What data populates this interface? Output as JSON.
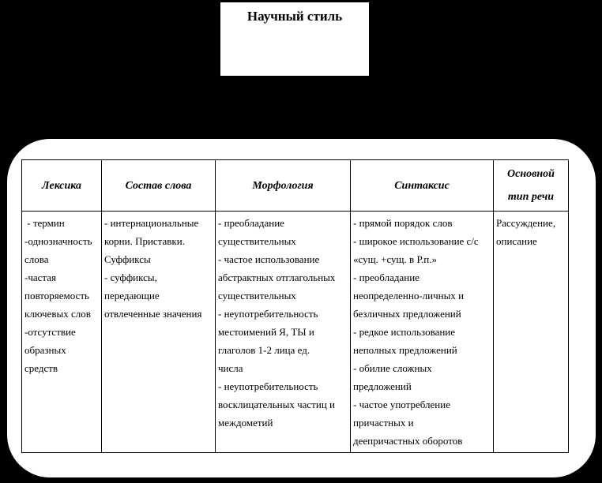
{
  "title_box": {
    "label": "Научный стиль"
  },
  "table": {
    "headers": [
      {
        "lines": [
          "Лексика"
        ]
      },
      {
        "lines": [
          "Состав слова"
        ]
      },
      {
        "lines": [
          "Морфология"
        ]
      },
      {
        "lines": [
          "Синтаксис"
        ]
      },
      {
        "lines": [
          "Основной",
          "тип речи"
        ]
      }
    ],
    "cells": [
      {
        "lines": [
          " - термин",
          "-однозначность",
          "слова",
          "-частая",
          "повторяемость",
          "ключевых слов",
          "-отсутствие",
          "образных",
          "средств"
        ]
      },
      {
        "lines": [
          "- интернациональные",
          "корни. Приставки.",
          "Суффиксы",
          "- суффиксы,",
          "передающие",
          "отвлеченные значения"
        ]
      },
      {
        "lines": [
          "- преобладание",
          "существительных",
          "- частое использование",
          "абстрактных отглагольных",
          "существительных",
          "- неупотребительность",
          "местоимений Я, ТЫ и",
          "глаголов 1-2 лица ед.",
          "числа",
          "- неупотребительность",
          "восклицательных частиц и",
          "междометий"
        ]
      },
      {
        "lines": [
          "- прямой порядок слов",
          "- широкое использование с/с",
          "«сущ. +сущ. в Р.п.»",
          "- преобладание",
          "неопределенно-личных и",
          "безличных предложений",
          "- редкое использование",
          "неполных предложений",
          "- обилие сложных",
          "предложений",
          "- частое употребление",
          "причастных и",
          "деепричастных оборотов"
        ]
      },
      {
        "lines": [
          "Рассуждение,",
          "описание"
        ]
      }
    ]
  },
  "colors": {
    "background": "#000000",
    "surface": "#ffffff",
    "border": "#000000",
    "text": "#000000"
  }
}
